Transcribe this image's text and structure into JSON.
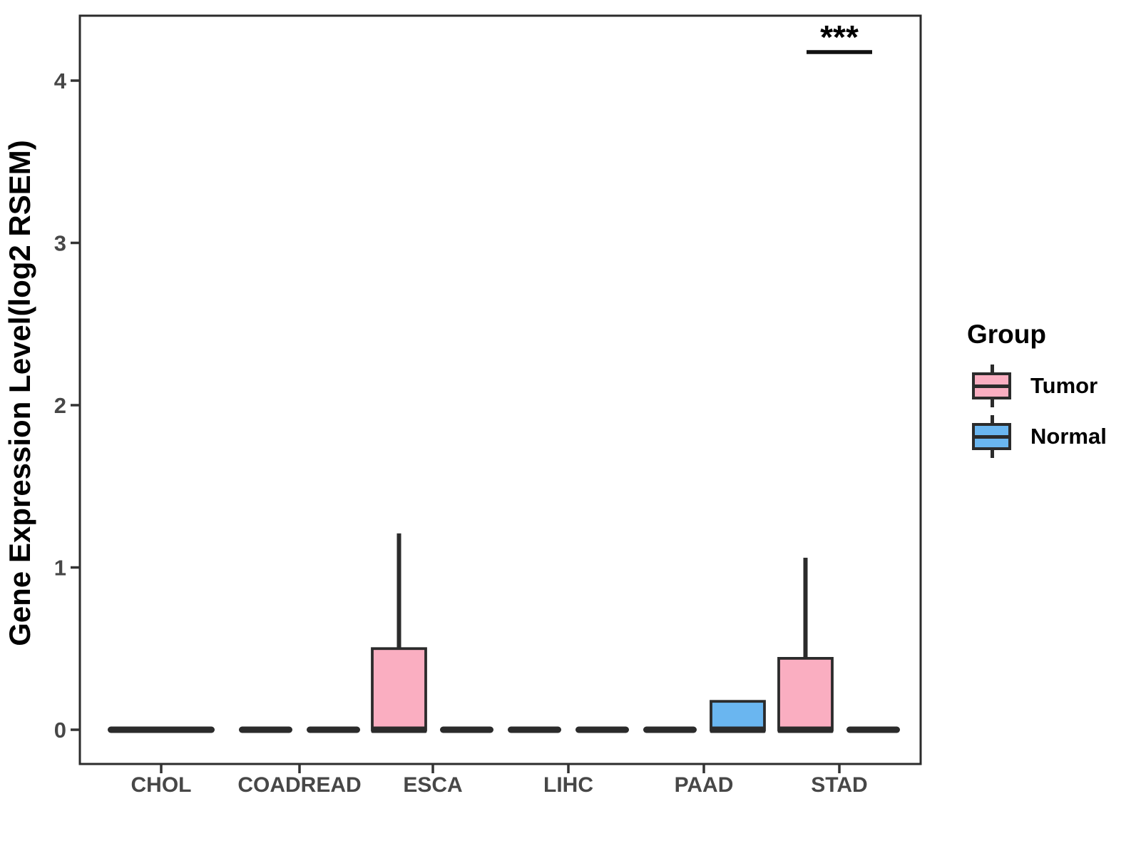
{
  "chart_data": {
    "type": "boxplot",
    "title": "",
    "xlabel": "",
    "ylabel": "Gene Expression Level(log2 RSEM)",
    "ylim": [
      -0.21,
      4.4
    ],
    "yticks": [
      0,
      1,
      2,
      3,
      4
    ],
    "grid": false,
    "panel_border": true,
    "categories": [
      "CHOL",
      "COADREAD",
      "ESCA",
      "LIHC",
      "PAAD",
      "STAD"
    ],
    "groups": [
      "Tumor",
      "Normal"
    ],
    "colors": {
      "tumor_fill": "#FAAEC1",
      "normal_fill": "#6AB6F0",
      "box_stroke": "#2b2b2b",
      "tick_text": "#474747",
      "axis_title_text": "#000000",
      "significance_text": "#000000"
    },
    "boxes": [
      {
        "category": "CHOL",
        "group": "Tumor",
        "flat": true,
        "merged": true,
        "q1": 0,
        "median": 0,
        "q3": 0,
        "lower": 0,
        "upper": 0
      },
      {
        "category": "CHOL",
        "group": "Normal",
        "flat": true,
        "merged": true,
        "q1": 0,
        "median": 0,
        "q3": 0,
        "lower": 0,
        "upper": 0
      },
      {
        "category": "COADREAD",
        "group": "Tumor",
        "flat": true,
        "merged": false,
        "q1": 0,
        "median": 0,
        "q3": 0,
        "lower": 0,
        "upper": 0
      },
      {
        "category": "COADREAD",
        "group": "Normal",
        "flat": true,
        "merged": false,
        "q1": 0,
        "median": 0,
        "q3": 0,
        "lower": 0,
        "upper": 0
      },
      {
        "category": "ESCA",
        "group": "Tumor",
        "flat": false,
        "merged": false,
        "q1": 0,
        "median": 0,
        "q3": 0.5,
        "lower": 0,
        "upper": 1.21
      },
      {
        "category": "ESCA",
        "group": "Normal",
        "flat": true,
        "merged": false,
        "q1": 0,
        "median": 0,
        "q3": 0,
        "lower": 0,
        "upper": 0
      },
      {
        "category": "LIHC",
        "group": "Tumor",
        "flat": true,
        "merged": false,
        "q1": 0,
        "median": 0,
        "q3": 0,
        "lower": 0,
        "upper": 0
      },
      {
        "category": "LIHC",
        "group": "Normal",
        "flat": true,
        "merged": false,
        "q1": 0,
        "median": 0,
        "q3": 0,
        "lower": 0,
        "upper": 0
      },
      {
        "category": "PAAD",
        "group": "Tumor",
        "flat": true,
        "merged": false,
        "q1": 0,
        "median": 0,
        "q3": 0,
        "lower": 0,
        "upper": 0
      },
      {
        "category": "PAAD",
        "group": "Normal",
        "flat": false,
        "merged": false,
        "q1": 0,
        "median": 0,
        "q3": 0.175,
        "lower": 0,
        "upper": 0.175
      },
      {
        "category": "STAD",
        "group": "Tumor",
        "flat": false,
        "merged": false,
        "q1": 0,
        "median": 0,
        "q3": 0.44,
        "lower": 0,
        "upper": 1.06
      },
      {
        "category": "STAD",
        "group": "Normal",
        "flat": true,
        "merged": false,
        "q1": 0,
        "median": 0,
        "q3": 0,
        "lower": 0,
        "upper": 0
      }
    ],
    "significance": [
      {
        "category": "STAD",
        "label": "***"
      }
    ],
    "legend": {
      "title": "Group",
      "position": "right",
      "items": [
        {
          "label": "Tumor",
          "color": "#FAAEC1"
        },
        {
          "label": "Normal",
          "color": "#6AB6F0"
        }
      ]
    }
  }
}
